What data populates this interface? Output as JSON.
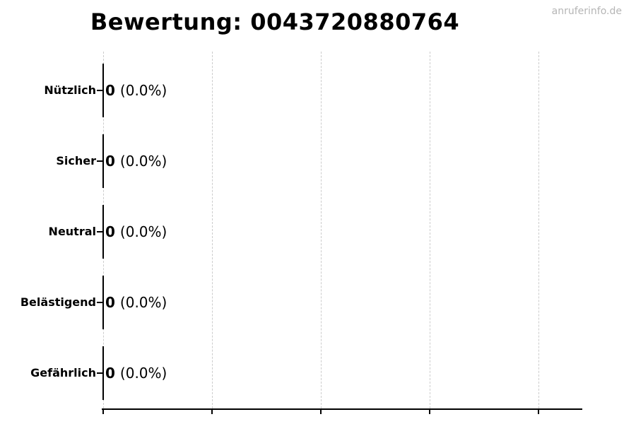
{
  "watermark": "anruferinfo.de",
  "chart_data": {
    "type": "bar",
    "orientation": "horizontal",
    "title": "Bewertung: 0043720880764",
    "categories": [
      "Nützlich",
      "Sicher",
      "Neutral",
      "Belästigend",
      "Gefährlich"
    ],
    "values": [
      0,
      0,
      0,
      0,
      0
    ],
    "percent_labels": [
      "(0.0%)",
      "(0.0%)",
      "(0.0%)",
      "(0.0%)",
      "(0.0%)"
    ],
    "value_labels": [
      "0 (0.0%)",
      "0 (0.0%)",
      "0 (0.0%)",
      "0 (0.0%)",
      "0 (0.0%)"
    ],
    "xlabel": "",
    "ylabel": "",
    "grid": {
      "axis": "x",
      "style": "dashed",
      "num_gridlines": 5
    },
    "legend": false,
    "colors": {
      "bar": "#000000",
      "axis": "#000000",
      "text": "#000000",
      "grid": "#cccccc",
      "watermark": "#b5b5b5",
      "background": "#ffffff"
    }
  }
}
